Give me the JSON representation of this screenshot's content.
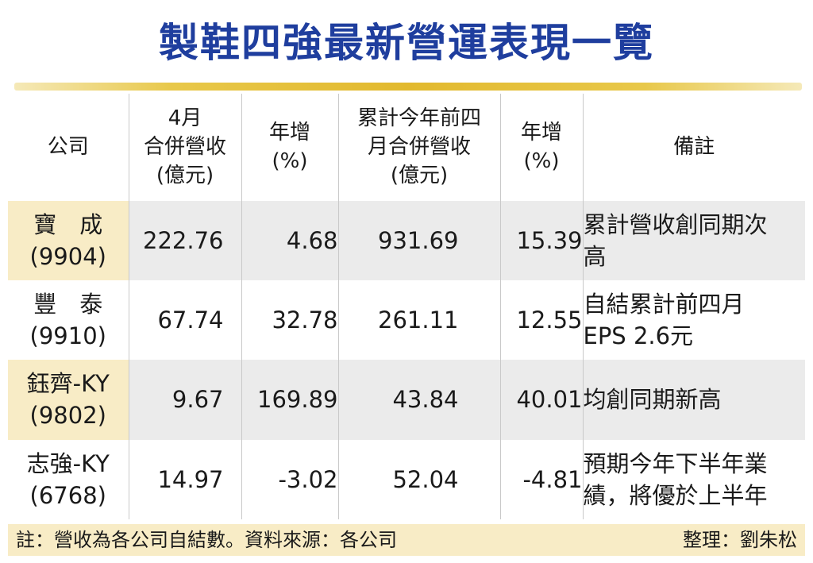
{
  "title": "製鞋四強最新營運表現一覽",
  "headers": {
    "company": "公司",
    "april_revenue": [
      "4月",
      "合併營收",
      "(億元)"
    ],
    "april_yoy": [
      "年增",
      "(%)"
    ],
    "cumulative_revenue": [
      "累計今年前四",
      "月合併營收",
      "(億元)"
    ],
    "cumulative_yoy": [
      "年增",
      "(%)"
    ],
    "note": "備註"
  },
  "rows": [
    {
      "name": "寶　成",
      "code": "(9904)",
      "april_revenue": "222.76",
      "april_yoy": "4.68",
      "cumulative_revenue": "931.69",
      "cumulative_yoy": "15.39",
      "note": [
        "累計營收創同期次",
        "高"
      ]
    },
    {
      "name": "豐　泰",
      "code": "(9910)",
      "april_revenue": "67.74",
      "april_yoy": "32.78",
      "cumulative_revenue": "261.11",
      "cumulative_yoy": "12.55",
      "note": [
        "自結累計前四月",
        "EPS 2.6元"
      ]
    },
    {
      "name": "鈺齊-KY",
      "code": "(9802)",
      "april_revenue": "9.67",
      "april_yoy": "169.89",
      "cumulative_revenue": "43.84",
      "cumulative_yoy": "40.01",
      "note": [
        "均創同期新高",
        ""
      ]
    },
    {
      "name": "志強-KY",
      "code": "(6768)",
      "april_revenue": "14.97",
      "april_yoy": "-3.02",
      "cumulative_revenue": "52.04",
      "cumulative_yoy": "-4.81",
      "note": [
        "預期今年下半年業",
        "績，將優於上半年"
      ]
    }
  ],
  "footer": {
    "note": "註：營收為各公司自結數。資料來源：各公司",
    "editor": "整理：劉朱松"
  },
  "colors": {
    "title": "#1f3e9e",
    "gold_bar": "#e2b92e",
    "row_shade_company": "#f8ecc6",
    "row_shade": "#ebebeb"
  }
}
